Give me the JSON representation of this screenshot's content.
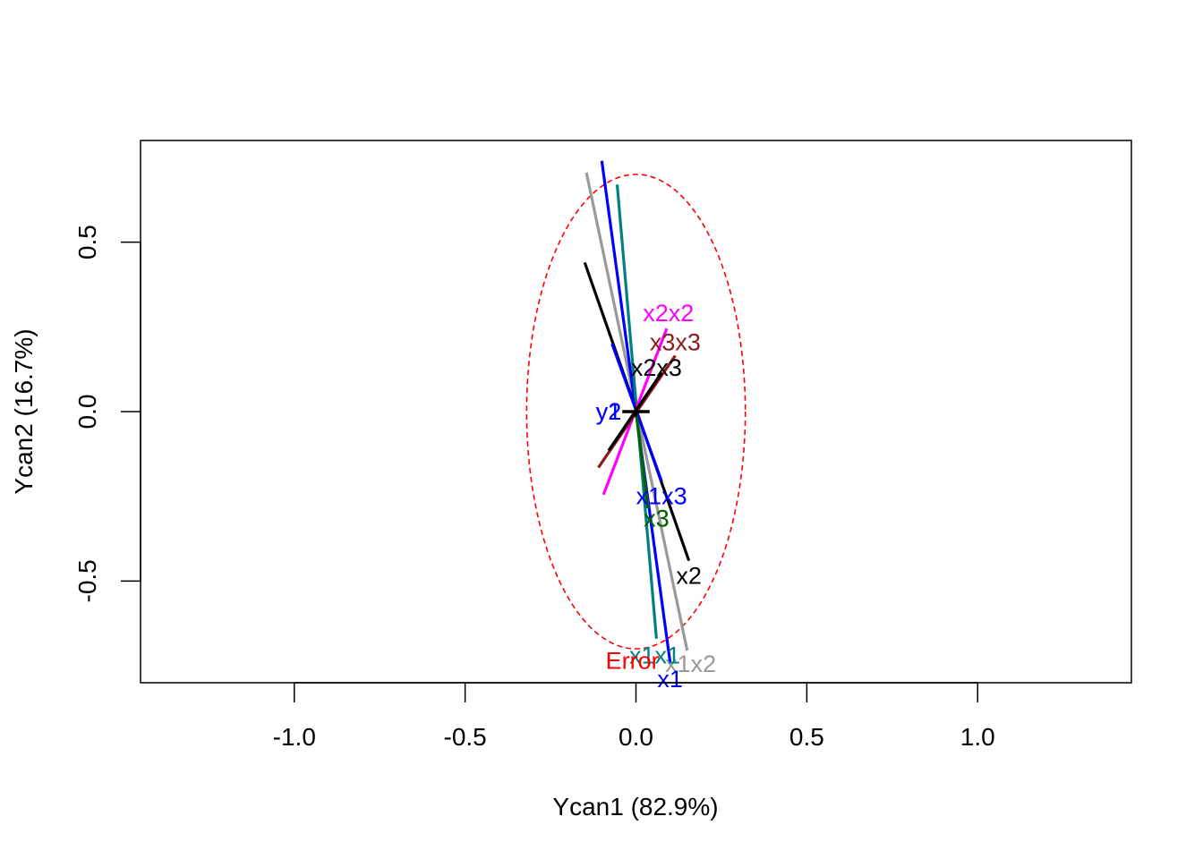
{
  "chart_data": {
    "type": "line",
    "title": "",
    "xlabel": "Ycan1 (82.9%)",
    "ylabel": "Ycan2 (16.7%)",
    "xlim": [
      -1.45,
      1.45
    ],
    "ylim": [
      -0.8,
      0.8
    ],
    "xticks": [
      -1.0,
      -0.5,
      0.0,
      0.5,
      1.0
    ],
    "xtick_labels": [
      "-1.0",
      "-0.5",
      "0.0",
      "0.5",
      "1.0"
    ],
    "yticks": [
      -0.5,
      0.0,
      0.5
    ],
    "ytick_labels": [
      "-0.5",
      "0.0",
      "0.5"
    ],
    "grid": false,
    "error_ellipse": {
      "label": "Error",
      "color": "#ff0000",
      "center": [
        0.0,
        0.0
      ],
      "rx": 0.32,
      "ry": 0.7
    },
    "center_cross": {
      "color": "#000000",
      "half_width": 0.04,
      "half_height": 0.015
    },
    "series": [
      {
        "color": "#999999",
        "x": [
          -0.145,
          0.15
        ],
        "y": [
          0.705,
          -0.705
        ],
        "end_labels": [
          {
            "text": "x1x2",
            "x": 0.16,
            "y": -0.745
          }
        ]
      },
      {
        "color": "#0000ff",
        "x": [
          -0.1,
          0.1
        ],
        "y": [
          0.74,
          -0.74
        ],
        "end_labels": [
          {
            "text": "x1",
            "x": 0.1,
            "y": -0.79
          }
        ]
      },
      {
        "color": "#008080",
        "x": [
          -0.055,
          0.06
        ],
        "y": [
          0.67,
          -0.67
        ],
        "end_labels": [
          {
            "text": "x1x1",
            "x": 0.055,
            "y": -0.72
          }
        ]
      },
      {
        "color": "#000000",
        "x": [
          -0.15,
          0.155
        ],
        "y": [
          0.44,
          -0.44
        ],
        "end_labels": [
          {
            "text": "x2",
            "x": 0.155,
            "y": -0.485
          }
        ]
      },
      {
        "color": "#0000ff",
        "x": [
          -0.07,
          0.075
        ],
        "y": [
          0.2,
          -0.205
        ],
        "end_labels": [
          {
            "text": "x1x3",
            "x": 0.075,
            "y": -0.25
          }
        ]
      },
      {
        "color": "#808080",
        "x": [
          0.0,
          0.035
        ],
        "y": [
          0.0,
          -0.285
        ],
        "end_labels": [
          {
            "text": "x3",
            "x": 0.06,
            "y": -0.315
          }
        ]
      },
      {
        "color": "#006400",
        "x": [
          0.0,
          0.035
        ],
        "y": [
          0.0,
          -0.285
        ],
        "end_labels": [
          {
            "text": "x3",
            "x": 0.06,
            "y": -0.315
          }
        ]
      },
      {
        "color": "#ff00ff",
        "x": [
          -0.095,
          0.09
        ],
        "y": [
          -0.245,
          0.245
        ],
        "end_labels": [
          {
            "text": "x2x2",
            "x": 0.095,
            "y": 0.29
          }
        ]
      },
      {
        "color": "#8b1a1a",
        "x": [
          -0.11,
          0.115
        ],
        "y": [
          -0.165,
          0.165
        ],
        "end_labels": [
          {
            "text": "x3x3",
            "x": 0.115,
            "y": 0.205
          }
        ]
      },
      {
        "color": "#000000",
        "x": [
          -0.08,
          0.075
        ],
        "y": [
          -0.115,
          0.115
        ],
        "end_labels": [
          {
            "text": "x2x3",
            "x": 0.06,
            "y": 0.13
          }
        ]
      }
    ],
    "point_labels": [
      {
        "text": "y2",
        "x": -0.08,
        "y": 0.0,
        "color": "#0000ff"
      },
      {
        "text": "y1",
        "x": -0.08,
        "y": 0.0,
        "color": "#0000ff"
      }
    ]
  }
}
